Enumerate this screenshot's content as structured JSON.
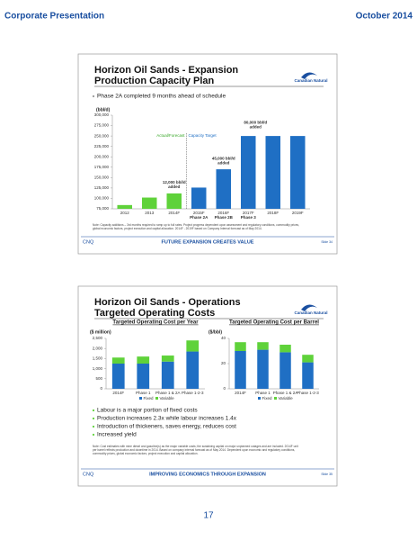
{
  "header": {
    "left": "Corporate Presentation",
    "right": "October 2014"
  },
  "slides": [
    {
      "title": [
        "Horizon Oil Sands - Expansion",
        "Production Capacity Plan"
      ],
      "logo": "Canadian Natural",
      "bullets": [
        "Phase 2A completed 9 months ahead of schedule"
      ],
      "note": [
        "Note: Capacity additions – 3rd months required to ramp up to full rates. Project progress dependent upon assessment and regulatory conditions, commodity prices,",
        "global economic factors, project execution and capital allocation. 2014F - 2019F based on Company Internal forecast as of May 2014."
      ],
      "footer": {
        "left": "CNQ",
        "center": "FUTURE EXPANSION CREATES VALUE",
        "right": "Slide 34"
      }
    },
    {
      "title": [
        "Horizon Oil Sands - Operations",
        "Targeted Operating Costs"
      ],
      "logo": "Canadian Natural",
      "bullets": [
        "Labour is a major portion of fixed costs",
        "Production increases 2.3x while labour increases 1.4x",
        "Introduction of thickeners, saves energy, reduces cost",
        "Increased yield"
      ],
      "note": [
        "Note: Cost estimates with mine diesel and gasoline(s) as the major variable costs; the sustaining capital on major unplanned outages and are included. 2014F unit",
        "per barrel reflects production and downtime in 2014. Based on company internal forecast as of May 2014. Dependent upon economic and regulatory conditions,",
        "commodity prices, global economic factors, project execution and capital allocation."
      ],
      "footer": {
        "left": "CNQ",
        "center": "IMPROVING ECONOMICS THROUGH EXPANSION",
        "right": "Slide 35"
      }
    }
  ],
  "chart_data": [
    {
      "type": "bar",
      "ylabel": "(bbl/d)",
      "categories": [
        "2012",
        "2013",
        "2014F",
        "2015F",
        "2016F",
        "2017F",
        "2018F",
        "2019F"
      ],
      "values": [
        84000,
        102000,
        112000,
        126000,
        170000,
        250000,
        250000,
        250000
      ],
      "colors": [
        "#5fd23a",
        "#5fd23a",
        "#5fd23a",
        "#1f6fc4",
        "#1f6fc4",
        "#1f6fc4",
        "#1f6fc4",
        "#1f6fc4"
      ],
      "ylim": [
        75000,
        300000
      ],
      "yticks": [
        {
          "value": 75000,
          "label": "75,000"
        },
        {
          "value": 100000,
          "label": "100,000"
        },
        {
          "value": 125000,
          "label": "125,000"
        },
        {
          "value": 150000,
          "label": "150,000"
        },
        {
          "value": 175000,
          "label": "175,000"
        },
        {
          "value": 200000,
          "label": "200,000"
        },
        {
          "value": 225000,
          "label": "225,000"
        },
        {
          "value": 250000,
          "label": "250,000"
        },
        {
          "value": 275000,
          "label": "275,000"
        },
        {
          "value": 300000,
          "label": "300,000"
        }
      ],
      "divider_labels": [
        "Actual/Forecast",
        "Capacity Target"
      ],
      "added_labels": [
        [
          "12,000 bbl/d",
          "added"
        ],
        [
          "45,000 bbl/d",
          "added"
        ],
        [
          "80,000 bbl/d",
          "added"
        ]
      ],
      "phase_labels": [
        "Phase 2A",
        "Phase 2B",
        "Phase 3"
      ]
    },
    {
      "type": "stacked_bar",
      "title": "Targeted Operating Cost per Year",
      "ylabel": "($ million)",
      "categories": [
        "2014F",
        "Phase 1",
        "Phase 1 & 2A",
        "Phase 1-2-3"
      ],
      "series": [
        {
          "name": "Fixed",
          "color": "#1f6fc4",
          "values": [
            1250,
            1250,
            1350,
            1850
          ]
        },
        {
          "name": "Variable",
          "color": "#5fd23a",
          "values": [
            300,
            350,
            300,
            550
          ]
        }
      ],
      "ylim": [
        0,
        2500
      ],
      "yticks": [
        0,
        500,
        {
          "value": 1000,
          "label": "1,000"
        },
        {
          "value": 1500,
          "label": "1,500"
        },
        {
          "value": 2000,
          "label": "2,000"
        },
        {
          "value": 2500,
          "label": "2,500"
        }
      ]
    },
    {
      "type": "stacked_bar",
      "title": "Targeted Operating Cost per Barrel",
      "ylabel": "($/bbl)",
      "categories": [
        "2014F",
        "Phase 1",
        "Phase 1 & 2A",
        "Phase 1-2-3"
      ],
      "series": [
        {
          "name": "Fixed",
          "color": "#1f6fc4",
          "values": [
            30,
            31,
            29,
            21
          ]
        },
        {
          "name": "Variable",
          "color": "#5fd23a",
          "values": [
            7,
            6,
            6,
            6
          ]
        }
      ],
      "ylim": [
        0,
        40
      ],
      "yticks": [
        0,
        20,
        40
      ]
    }
  ],
  "page_number": "17"
}
